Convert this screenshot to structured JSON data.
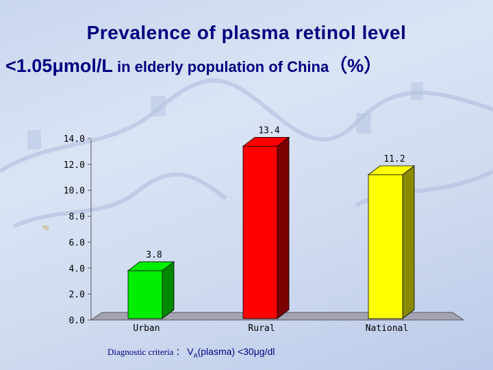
{
  "title": {
    "line1": "Prevalence of plasma retinol level",
    "line2_value": "<1.05μmol/L",
    "line2_rest": " in elderly population of China",
    "line2_unit": "（%）"
  },
  "stray_mark": "%",
  "footnote": {
    "prefix": "Diagnostic criteria ：",
    "va": "V",
    "va_sub": "A",
    "rest": "(plasma) <30μg/dl"
  },
  "colors": {
    "title": "#000080",
    "urban": "#00ee00",
    "rural": "#ff0000",
    "national": "#ffff00",
    "floor": "#a3a3b4"
  },
  "chart_data": {
    "type": "bar",
    "categories": [
      "Urban",
      "Rural",
      "National"
    ],
    "values": [
      3.8,
      13.4,
      11.2
    ],
    "value_labels": [
      "3.8",
      "13.4",
      "11.2"
    ],
    "title": "Prevalence of plasma retinol level <1.05μmol/L in elderly population of China（%）",
    "xlabel": "",
    "ylabel": "",
    "ylim": [
      0,
      14
    ],
    "yticks": [
      0,
      2,
      4,
      6,
      8,
      10,
      12,
      14
    ],
    "ytick_labels": [
      "0.0",
      "2.0",
      "4.0",
      "6.0",
      "8.0",
      "10.0",
      "12.0",
      "14.0"
    ],
    "grid": false,
    "legend": "none",
    "style": "3d"
  }
}
